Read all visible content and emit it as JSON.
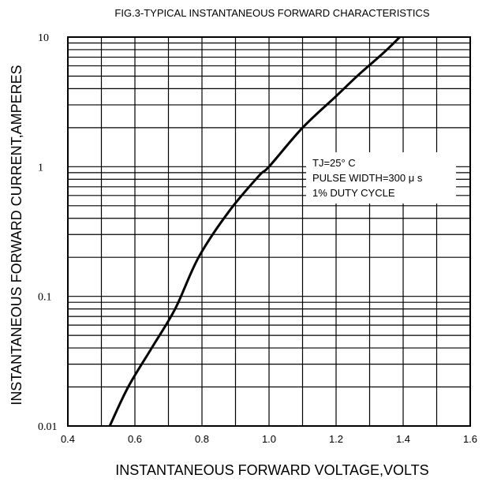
{
  "chart_data": {
    "type": "line",
    "title": "FIG.3-TYPICAL INSTANTANEOUS FORWARD CHARACTERISTICS",
    "xlabel": "INSTANTANEOUS FORWARD VOLTAGE,VOLTS",
    "ylabel": "INSTANTANEOUS FORWARD CURRENT,AMPERES",
    "xlim": [
      0.4,
      1.6
    ],
    "ylim": [
      0.01,
      10
    ],
    "yscale": "log",
    "grid": true,
    "x_ticks": [
      "0.4",
      "0.6",
      "0.8",
      "1.0",
      "1.2",
      "1.4",
      "1.6"
    ],
    "y_ticks": [
      "0.01",
      "0.1",
      "1",
      "10"
    ],
    "annotations": [
      "TJ=25° C",
      "PULSE WIDTH=300 μ s",
      "1% DUTY CYCLE"
    ],
    "series": [
      {
        "x": [
          0.525,
          0.58,
          0.65,
          0.72,
          0.79,
          0.88,
          0.97,
          1.0,
          1.1,
          1.2,
          1.27,
          1.34,
          1.39
        ],
        "y": [
          0.01,
          0.02,
          0.04,
          0.08,
          0.2,
          0.45,
          0.85,
          1.0,
          2.0,
          3.5,
          5.2,
          7.5,
          10.0
        ]
      }
    ]
  }
}
